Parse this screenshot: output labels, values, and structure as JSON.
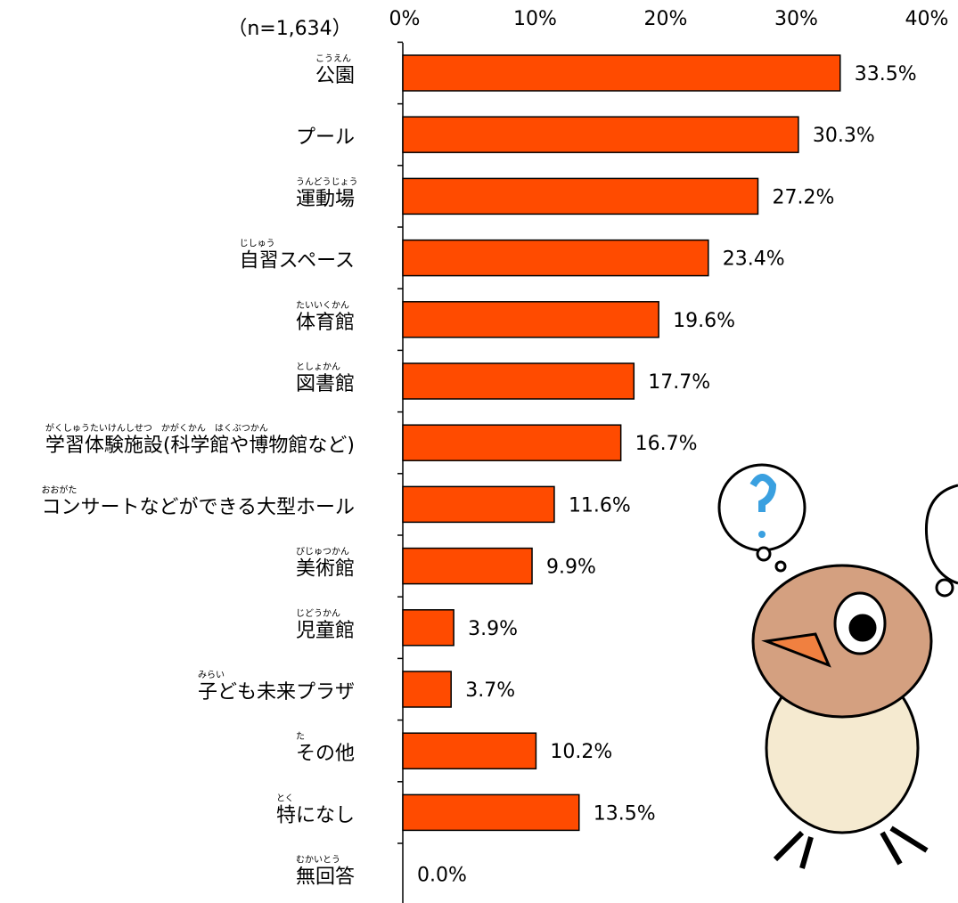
{
  "chart_data": {
    "type": "bar",
    "orientation": "horizontal",
    "subtitle": "（n=1,634）",
    "categories": [
      "公園",
      "プール",
      "運動場",
      "自習スペース",
      "体育館",
      "図書館",
      "学習体験施設(科学館や博物館など)",
      "コンサートなどができる大型ホール",
      "美術館",
      "児童館",
      "子ども未来プラザ",
      "その他",
      "特になし",
      "無回答"
    ],
    "furigana": [
      "こうえん",
      null,
      "うんどうじょう",
      "じしゅう",
      "たいいくかん",
      "としょかん",
      "がくしゅうたいけんしせつ　かがくかん　はくぶつかん",
      "おおがた",
      "びじゅつかん",
      "じどうかん",
      "みらい",
      "た",
      "とく",
      "むかいとう"
    ],
    "values": [
      33.5,
      30.3,
      27.2,
      23.4,
      19.6,
      17.7,
      16.7,
      11.6,
      9.9,
      3.9,
      3.7,
      10.2,
      13.5,
      0.0
    ],
    "value_labels": [
      "33.5%",
      "30.3%",
      "27.2%",
      "23.4%",
      "19.6%",
      "17.7%",
      "16.7%",
      "11.6%",
      "9.9%",
      "3.9%",
      "3.7%",
      "10.2%",
      "13.5%",
      "0.0%"
    ],
    "color": "#ff4b00",
    "xlim": [
      0,
      40
    ],
    "xticks": [
      {
        "value": 0,
        "label": "0%"
      },
      {
        "value": 10,
        "label": "10%"
      },
      {
        "value": 20,
        "label": "20%"
      },
      {
        "value": 30,
        "label": "30%"
      },
      {
        "value": 40,
        "label": "40%"
      }
    ],
    "grid": false
  }
}
